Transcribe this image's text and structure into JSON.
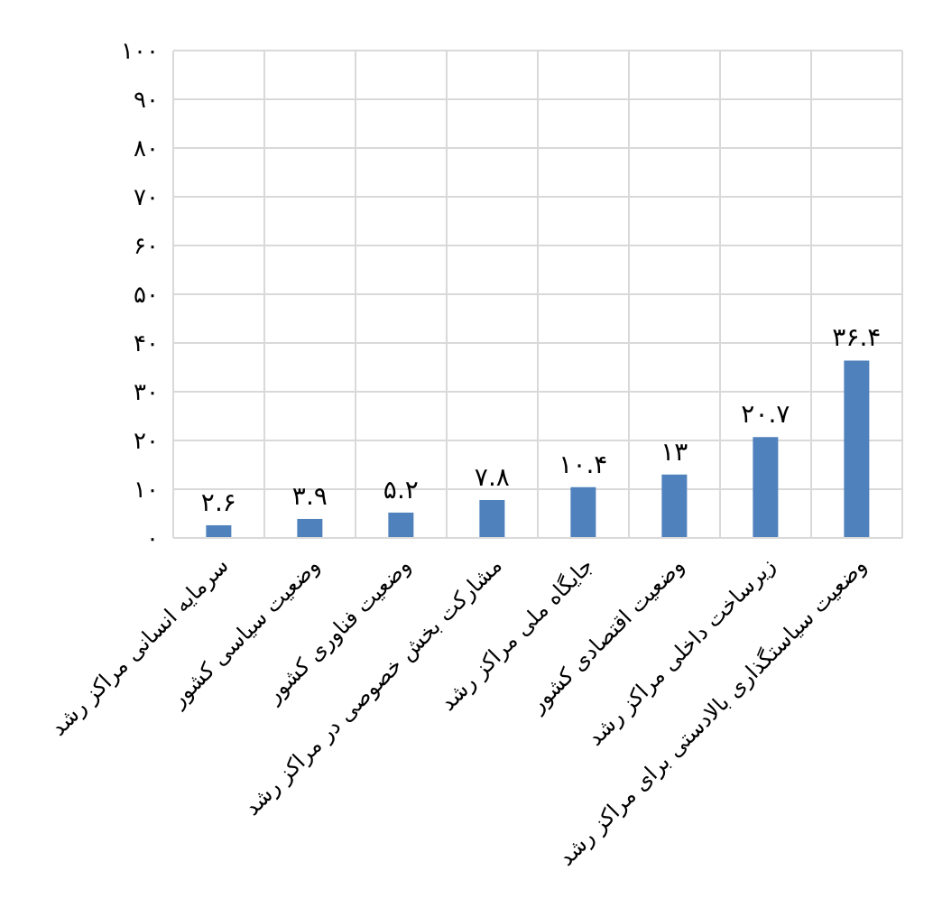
{
  "chart_data": {
    "type": "bar",
    "categories": [
      "سرمایه انسانی مراکز رشد",
      "وضعیت سیاسی کشور",
      "وضعیت فناوری کشور",
      "مشارکت بخش خصوصی در مراکز رشد",
      "جایگاه ملی مراکز رشد",
      "وضعیت اقتصادی کشور",
      "زیرساخت داخلی مراکز رشد",
      "وضعیت سیاستگذاری بالادستی برای مراکز رشد"
    ],
    "values": [
      2.6,
      3.9,
      5.2,
      7.8,
      10.4,
      13,
      20.7,
      36.4
    ],
    "value_labels": [
      "۲.۶",
      "۳.۹",
      "۵.۲",
      "۷.۸",
      "۱۰.۴",
      "۱۳",
      "۲۰.۷",
      "۳۶.۴"
    ],
    "color": "#4f81bd",
    "ylim": [
      0,
      100
    ],
    "yticks": [
      {
        "value": 0,
        "label": "۰"
      },
      {
        "value": 10,
        "label": "۱۰"
      },
      {
        "value": 20,
        "label": "۲۰"
      },
      {
        "value": 30,
        "label": "۳۰"
      },
      {
        "value": 40,
        "label": "۴۰"
      },
      {
        "value": 50,
        "label": "۵۰"
      },
      {
        "value": 60,
        "label": "۶۰"
      },
      {
        "value": 70,
        "label": "۷۰"
      },
      {
        "value": 80,
        "label": "۸۰"
      },
      {
        "value": 90,
        "label": "۹۰"
      },
      {
        "value": 100,
        "label": "۱۰۰"
      }
    ],
    "grid": true
  }
}
